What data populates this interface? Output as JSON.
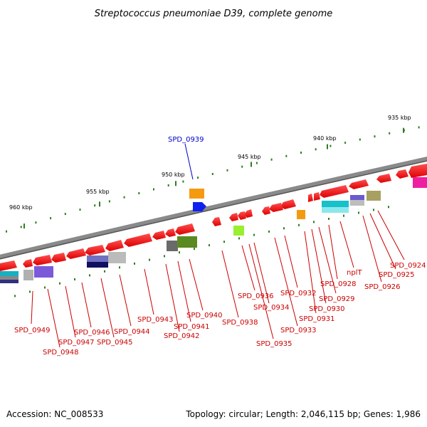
{
  "title": "Streptococcus pneumoniae D39, complete genome",
  "footer": {
    "accession": "Accession: NC_008533",
    "summary": "Topology: circular; Length: 2,046,115 bp; Genes: 1,986"
  },
  "ticks": [
    {
      "label": "935 kbp"
    },
    {
      "label": "940 kbp"
    },
    {
      "label": "945 kbp"
    },
    {
      "label": "950 kbp"
    },
    {
      "label": "955 kbp"
    },
    {
      "label": "960 kbp"
    }
  ],
  "gene_labels": [
    {
      "text": "SPD_0939",
      "color": "#0000cc"
    },
    {
      "text": "SPD_0924",
      "color": "#cc0000"
    },
    {
      "text": "SPD_0925",
      "color": "#cc0000"
    },
    {
      "text": "SPD_0926",
      "color": "#cc0000"
    },
    {
      "text": "nplT",
      "color": "#cc0000"
    },
    {
      "text": "SPD_0928",
      "color": "#cc0000"
    },
    {
      "text": "SPD_0929",
      "color": "#cc0000"
    },
    {
      "text": "SPD_0930",
      "color": "#cc0000"
    },
    {
      "text": "SPD_0931",
      "color": "#cc0000"
    },
    {
      "text": "SPD_0932",
      "color": "#cc0000"
    },
    {
      "text": "SPD_0933",
      "color": "#cc0000"
    },
    {
      "text": "SPD_0934",
      "color": "#cc0000"
    },
    {
      "text": "SPD_0935",
      "color": "#cc0000"
    },
    {
      "text": "SPD_0936",
      "color": "#cc0000"
    },
    {
      "text": "SPD_0938",
      "color": "#cc0000"
    },
    {
      "text": "SPD_0940",
      "color": "#cc0000"
    },
    {
      "text": "SPD_0941",
      "color": "#cc0000"
    },
    {
      "text": "SPD_0942",
      "color": "#cc0000"
    },
    {
      "text": "SPD_0943",
      "color": "#cc0000"
    },
    {
      "text": "SPD_0944",
      "color": "#cc0000"
    },
    {
      "text": "SPD_0945",
      "color": "#cc0000"
    },
    {
      "text": "SPD_0946",
      "color": "#cc0000"
    },
    {
      "text": "SPD_0947",
      "color": "#cc0000"
    },
    {
      "text": "SPD_0948",
      "color": "#cc0000"
    },
    {
      "text": "SPD_0949",
      "color": "#cc0000"
    }
  ],
  "colors": {
    "backbone": "#7a7a7a",
    "gene_forward": "#ff1a1a",
    "tick_mark": "#2e7d1e",
    "label_line": "#cc0000",
    "highlight": "#0000cc"
  }
}
